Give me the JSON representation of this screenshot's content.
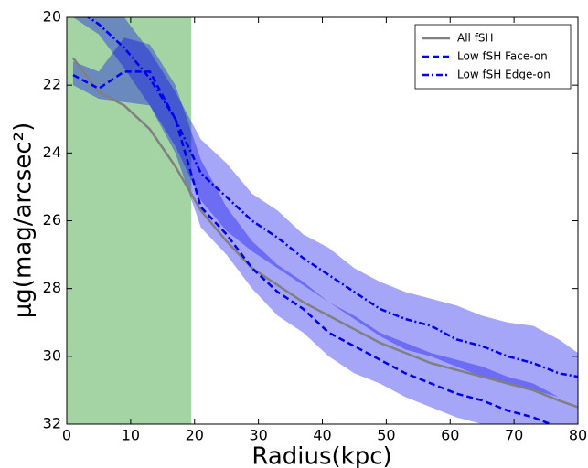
{
  "chart_data": {
    "type": "line",
    "xlabel": "Radius(kpc)",
    "ylabel": "μg(mag/arcsec²)",
    "x": [
      1,
      5,
      9,
      13,
      17,
      21,
      25,
      29,
      33,
      37,
      41,
      45,
      49,
      53,
      57,
      61,
      65,
      69,
      73,
      77,
      80
    ],
    "xlim": [
      0,
      80
    ],
    "xticks": [
      0,
      10,
      20,
      30,
      40,
      50,
      60,
      70,
      80
    ],
    "ylim": [
      32,
      20
    ],
    "yticks": [
      20,
      22,
      24,
      26,
      28,
      30,
      32
    ],
    "y_inverted": true,
    "highlight_xrange": [
      0,
      19.5
    ],
    "highlight_color": "#4aa84a",
    "legend": "upper right",
    "series": [
      {
        "name": "All fSH",
        "color": "#808080",
        "linestyle": "solid",
        "values": [
          21.2,
          22.2,
          22.6,
          23.3,
          24.4,
          25.7,
          26.6,
          27.4,
          27.9,
          28.4,
          28.8,
          29.2,
          29.6,
          29.9,
          30.2,
          30.4,
          30.6,
          30.8,
          31.0,
          31.3,
          31.5
        ]
      },
      {
        "name": "Low fSH Face-on",
        "color": "#0000ee",
        "linestyle": "dashed",
        "values": [
          21.7,
          22.1,
          21.6,
          21.6,
          23.0,
          25.6,
          26.4,
          27.4,
          28.1,
          28.6,
          29.3,
          29.7,
          30.1,
          30.5,
          30.8,
          31.1,
          31.3,
          31.6,
          31.8,
          32.1,
          32.3
        ],
        "band_low": [
          21.3,
          21.6,
          20.6,
          20.8,
          22.0,
          24.2,
          25.6,
          26.6,
          27.3,
          27.8,
          28.4,
          28.8,
          29.3,
          29.6,
          29.9,
          30.1,
          30.3,
          30.6,
          30.8,
          31.2,
          31.4
        ],
        "band_high": [
          22.0,
          22.4,
          22.5,
          22.6,
          24.0,
          26.2,
          27.0,
          28.0,
          28.8,
          29.3,
          30.0,
          30.5,
          30.8,
          31.2,
          31.5,
          31.8,
          32.0,
          32.3,
          32.5,
          32.8,
          33.0
        ]
      },
      {
        "name": "Low fSH Edge-on",
        "color": "#0000ee",
        "linestyle": "dashdot",
        "values": [
          19.7,
          20.2,
          20.9,
          21.8,
          23.0,
          24.6,
          25.3,
          26.0,
          26.5,
          27.1,
          27.6,
          28.1,
          28.6,
          28.9,
          29.1,
          29.5,
          29.7,
          30.0,
          30.2,
          30.5,
          30.6
        ],
        "band_low": [
          19.4,
          19.7,
          20.0,
          21.0,
          22.2,
          23.6,
          24.3,
          25.2,
          25.7,
          26.4,
          26.8,
          27.4,
          27.8,
          28.1,
          28.3,
          28.5,
          28.8,
          29.0,
          29.1,
          29.5,
          29.9
        ],
        "band_high": [
          20.0,
          20.5,
          21.5,
          22.6,
          23.8,
          25.4,
          26.3,
          26.9,
          27.4,
          27.9,
          28.4,
          28.9,
          29.4,
          29.8,
          30.0,
          30.3,
          30.6,
          30.8,
          31.0,
          31.2,
          31.4
        ]
      }
    ]
  }
}
